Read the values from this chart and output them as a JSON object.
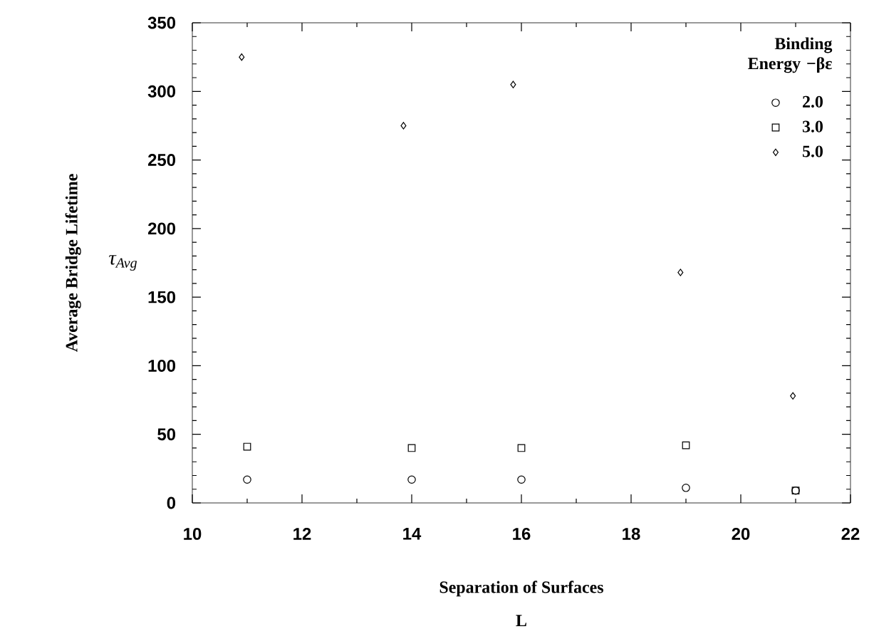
{
  "chart_data": {
    "type": "scatter",
    "xlabel": "Separation of Surfaces",
    "ylabel": "Average Bridge Lifetime",
    "legend_title": "Binding Energy −βε",
    "annotations": [
      "τ$_{Avg}$",
      "L"
    ],
    "xlim": [
      10,
      22
    ],
    "xticks": [
      10,
      12,
      14,
      16,
      18,
      20,
      22
    ],
    "ylim": [
      0,
      350
    ],
    "yticks": [
      0,
      50,
      100,
      150,
      200,
      250,
      300,
      350
    ],
    "legend": "top right",
    "grid": false,
    "series": [
      {
        "name": "2.0",
        "color": "#000000",
        "marker": "circle",
        "x": [
          11,
          14,
          16,
          19,
          21
        ],
        "values": [
          17,
          17,
          17,
          11,
          9
        ]
      },
      {
        "name": "3.0",
        "color": "#000000",
        "marker": "square",
        "x": [
          11,
          14,
          16,
          19,
          21
        ],
        "values": [
          41,
          40,
          40,
          42,
          9
        ]
      },
      {
        "name": "5.0",
        "color": "#000000",
        "marker": "diamond",
        "x": [
          10.9,
          13.85,
          15.85,
          18.9,
          20.95
        ],
        "values": [
          325,
          275,
          305,
          168,
          78
        ]
      }
    ]
  }
}
